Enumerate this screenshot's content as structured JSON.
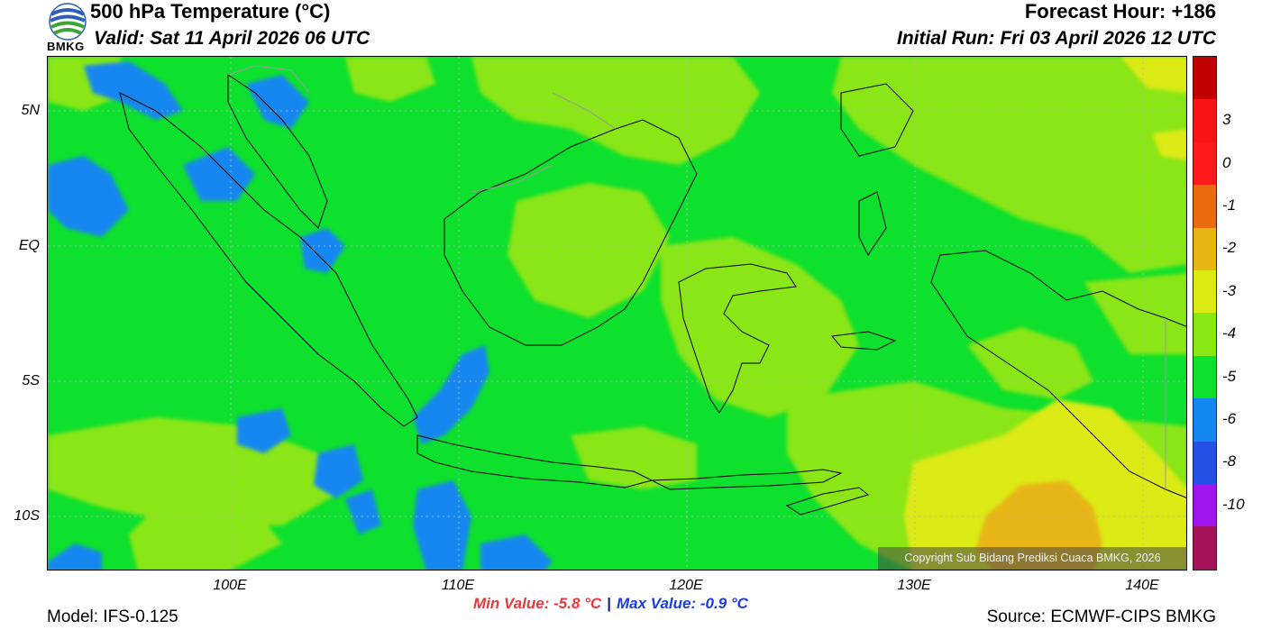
{
  "header": {
    "title": "500 hPa Temperature (°C)",
    "valid": "Valid: Sat 11 April 2026 06 UTC",
    "forecast_hour": "Forecast Hour: +186",
    "initial_run": "Initial Run: Fri 03 April 2026 12 UTC",
    "logo_text": "BMKG"
  },
  "axes": {
    "y_ticks": [
      "5N",
      "EQ",
      "5S",
      "10S"
    ],
    "x_ticks": [
      "100E",
      "110E",
      "120E",
      "130E",
      "140E"
    ],
    "extent": {
      "lon_min": 92,
      "lon_max": 142,
      "lat_min": -12,
      "lat_max": 7
    }
  },
  "stats": {
    "min": "Min Value: -5.8 °C",
    "separator": "|",
    "max": "Max Value: -0.9 °C"
  },
  "footer": {
    "model": "Model: IFS-0.125",
    "source": "Source: ECMWF-CIPS BMKG",
    "copyright": "Copyright Sub Bidang Prediksi Cuaca BMKG, 2026"
  },
  "colorbar": {
    "labels": [
      "3",
      "0",
      "-1",
      "-2",
      "-3",
      "-4",
      "-5",
      "-6",
      "-8",
      "-10"
    ],
    "colors": [
      "#c00000",
      "#fa1414",
      "#ff1a1a",
      "#ea6a10",
      "#e8b512",
      "#dcea14",
      "#8ae614",
      "#0ee02e",
      "#1487f0",
      "#2450e6",
      "#a014f0",
      "#a5145a"
    ]
  },
  "field_colors": {
    "background": "#0ee02e",
    "warm": "#8ae614",
    "warmer": "#dcea14",
    "warmest": "#e8b512",
    "cool": "#1487f0"
  }
}
